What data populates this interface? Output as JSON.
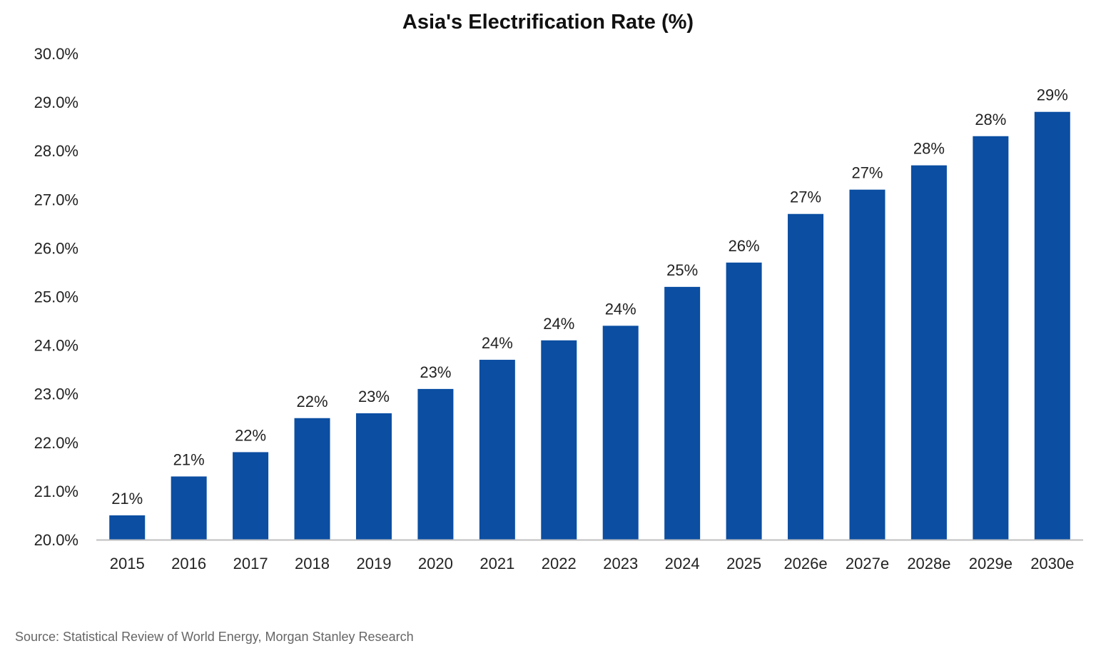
{
  "chart_data": {
    "type": "bar",
    "title": "Asia's Electrification Rate (%)",
    "xlabel": "",
    "ylabel": "",
    "categories": [
      "2015",
      "2016",
      "2017",
      "2018",
      "2019",
      "2020",
      "2021",
      "2022",
      "2023",
      "2024",
      "2025",
      "2026e",
      "2027e",
      "2028e",
      "2029e",
      "2030e"
    ],
    "values": [
      20.5,
      21.3,
      21.8,
      22.5,
      22.6,
      23.1,
      23.7,
      24.1,
      24.4,
      25.2,
      25.7,
      26.7,
      27.2,
      27.7,
      28.3,
      28.8
    ],
    "data_labels": [
      "21%",
      "21%",
      "22%",
      "22%",
      "23%",
      "23%",
      "24%",
      "24%",
      "24%",
      "25%",
      "26%",
      "27%",
      "27%",
      "28%",
      "28%",
      "29%"
    ],
    "ylim": [
      20,
      30
    ],
    "yticks": [
      20,
      21,
      22,
      23,
      24,
      25,
      26,
      27,
      28,
      29,
      30
    ],
    "ytick_labels": [
      "20.0%",
      "21.0%",
      "22.0%",
      "23.0%",
      "24.0%",
      "25.0%",
      "26.0%",
      "27.0%",
      "28.0%",
      "29.0%",
      "30.0%"
    ],
    "grid": false,
    "legend": "none",
    "bar_color": "#0B4EA2",
    "axis_color": "#BFBFBF"
  },
  "source": "Source: Statistical Review of World Energy, Morgan Stanley Research"
}
